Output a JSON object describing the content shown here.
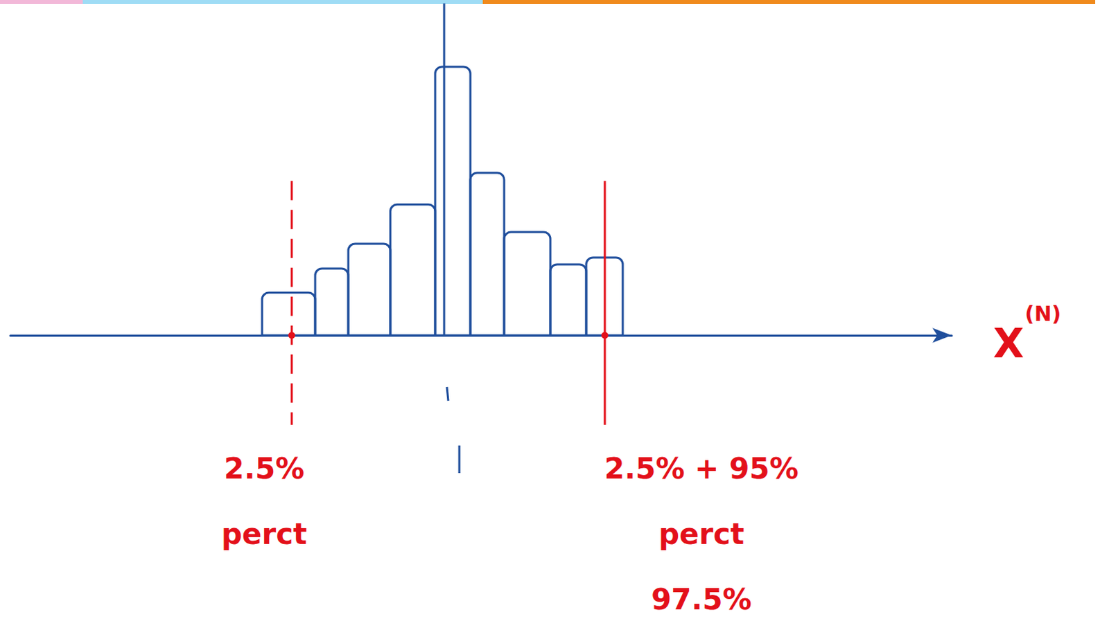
{
  "chart_data": {
    "type": "histogram",
    "bins": [
      365,
      442,
      490,
      551,
      616,
      667,
      716,
      783,
      835,
      888
    ],
    "counts": [
      62,
      97,
      133,
      190,
      390,
      236,
      150,
      103,
      113
    ],
    "color": "#1f4e9c",
    "center": 629,
    "x_label": {
      "base": "X",
      "superscript": "(N)"
    },
    "xlim": [
      0,
      1365
    ],
    "ylim": [
      0,
      477
    ],
    "tick_labels": false,
    "grid": false,
    "percentile_lines": [
      {
        "x": 408,
        "labels": [
          "2.5%",
          "perct"
        ],
        "color": "#e3101a",
        "line_style": "dashed"
      },
      {
        "x": 862,
        "labels": [
          "2.5% + 95%",
          "perct",
          "97.5%"
        ],
        "color": "#e3101a",
        "line_style": "solid"
      }
    ]
  }
}
